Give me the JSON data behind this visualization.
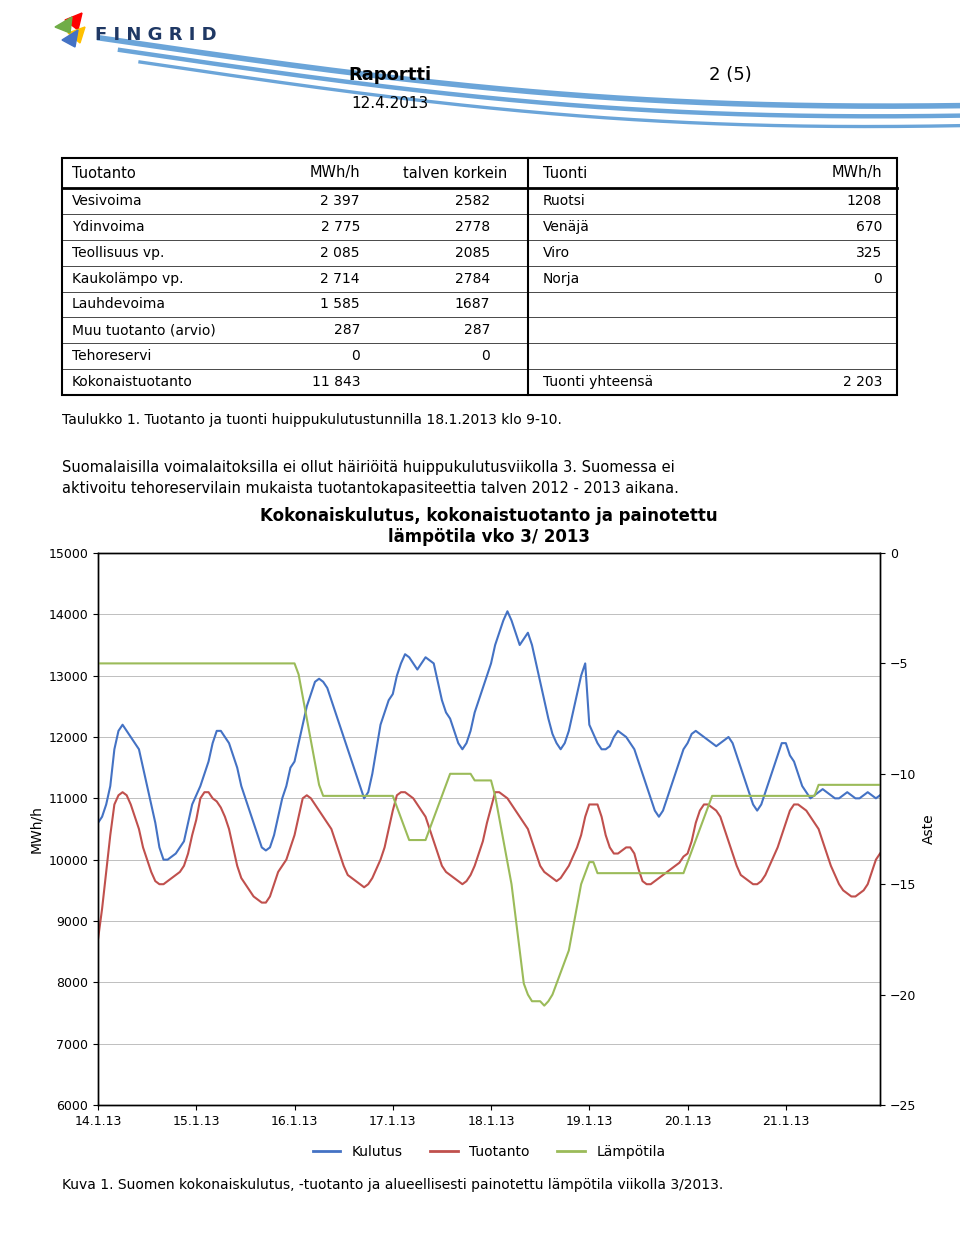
{
  "report_title": "Raportti",
  "report_page": "2 (5)",
  "report_date": "12.4.2013",
  "caption1": "Taulukko 1. Tuotanto ja tuonti huippukulutustunnilla 18.1.2013 klo 9-10.",
  "para_line1": "Suomalaisilla voimalaitoksilla ei ollut häiriöitä huippukulutusviikolla 3. Suomessa ei",
  "para_line2": "aktivoitu tehoreservilain mukaista tuotantokapasiteettia talven 2012 - 2013 aikana.",
  "chart_title": "Kokonaiskulutus, kokonaistuotanto ja painotettu\nlämpötila vko 3/ 2013",
  "ylabel_left": "MWh/h",
  "ylabel_right": "Aste",
  "ylim_left": [
    6000,
    15000
  ],
  "ylim_right": [
    -25,
    0
  ],
  "yticks_left": [
    6000,
    7000,
    8000,
    9000,
    10000,
    11000,
    12000,
    13000,
    14000,
    15000
  ],
  "yticks_right": [
    -25,
    -20,
    -15,
    -10,
    -5,
    0
  ],
  "xtick_labels": [
    "14.1.13",
    "15.1.13",
    "16.1.13",
    "17.1.13",
    "18.1.13",
    "19.1.13",
    "20.1.13",
    "21.1.13"
  ],
  "caption2": "Kuva 1. Suomen kokonaiskulutus, -tuotanto ja alueellisesti painotettu lämpötila viikolla 3/2013.",
  "color_kulutus": "#4472C4",
  "color_tuotanto": "#C0504D",
  "color_lampotila": "#9BBB59",
  "row_labels_left": [
    "Vesivoima",
    "Ydinvoima",
    "Teollisuus vp.",
    "Kaukolämpo vp.",
    "Lauhdevoima",
    "Muu tuotanto (arvio)",
    "Tehoreservi",
    "Kokonaistuotanto"
  ],
  "row_vals_mwh": [
    "2 397",
    "2 775",
    "2 085",
    "2 714",
    "1 585",
    "287",
    "0",
    "11 843"
  ],
  "row_vals_max": [
    "2582",
    "2778",
    "2085",
    "2784",
    "1687",
    "287",
    "0",
    ""
  ],
  "row_labels_right": [
    "Ruotsi",
    "Venäjä",
    "Viro",
    "Norja",
    "",
    "",
    "",
    "Tuonti yhteensä"
  ],
  "row_vals_right": [
    "1208",
    "670",
    "325",
    "0",
    "",
    "",
    "",
    "2 203"
  ],
  "kulutus": [
    10600,
    10700,
    10900,
    11200,
    11800,
    12100,
    12200,
    12100,
    12000,
    11900,
    11800,
    11500,
    11200,
    10900,
    10600,
    10200,
    10000,
    10000,
    10050,
    10100,
    10200,
    10300,
    10600,
    10900,
    11050,
    11200,
    11400,
    11600,
    11900,
    12100,
    12100,
    12000,
    11900,
    11700,
    11500,
    11200,
    11000,
    10800,
    10600,
    10400,
    10200,
    10150,
    10200,
    10400,
    10700,
    11000,
    11200,
    11500,
    11600,
    11900,
    12200,
    12500,
    12700,
    12900,
    12950,
    12900,
    12800,
    12600,
    12400,
    12200,
    12000,
    11800,
    11600,
    11400,
    11200,
    11000,
    11100,
    11400,
    11800,
    12200,
    12400,
    12600,
    12700,
    13000,
    13200,
    13350,
    13300,
    13200,
    13100,
    13200,
    13300,
    13250,
    13200,
    12900,
    12600,
    12400,
    12300,
    12100,
    11900,
    11800,
    11900,
    12100,
    12400,
    12600,
    12800,
    13000,
    13200,
    13500,
    13700,
    13900,
    14050,
    13900,
    13700,
    13500,
    13600,
    13700,
    13500,
    13200,
    12900,
    12600,
    12300,
    12050,
    11900,
    11800,
    11900,
    12100,
    12400,
    12700,
    13000,
    13200,
    12200,
    12050,
    11900,
    11800,
    11800,
    11850,
    12000,
    12100,
    12050,
    12000,
    11900,
    11800,
    11600,
    11400,
    11200,
    11000,
    10800,
    10700,
    10800,
    11000,
    11200,
    11400,
    11600,
    11800,
    11900,
    12050,
    12100,
    12050,
    12000,
    11950,
    11900,
    11850,
    11900,
    11950,
    12000,
    11900,
    11700,
    11500,
    11300,
    11100,
    10900,
    10800,
    10900,
    11100,
    11300,
    11500,
    11700,
    11900,
    11900,
    11700,
    11600,
    11400,
    11200,
    11100,
    11000,
    11050,
    11100,
    11150,
    11100,
    11050,
    11000,
    11000,
    11050,
    11100,
    11050,
    11000,
    11000,
    11050,
    11100,
    11050,
    11000,
    11050
  ],
  "tuotanto": [
    8700,
    9200,
    9800,
    10400,
    10900,
    11050,
    11100,
    11050,
    10900,
    10700,
    10500,
    10200,
    10000,
    9800,
    9650,
    9600,
    9600,
    9650,
    9700,
    9750,
    9800,
    9900,
    10100,
    10400,
    10650,
    11000,
    11100,
    11100,
    11000,
    10950,
    10850,
    10700,
    10500,
    10200,
    9900,
    9700,
    9600,
    9500,
    9400,
    9350,
    9300,
    9300,
    9400,
    9600,
    9800,
    9900,
    10000,
    10200,
    10400,
    10700,
    11000,
    11050,
    11000,
    10900,
    10800,
    10700,
    10600,
    10500,
    10300,
    10100,
    9900,
    9750,
    9700,
    9650,
    9600,
    9550,
    9600,
    9700,
    9850,
    10000,
    10200,
    10500,
    10800,
    11050,
    11100,
    11100,
    11050,
    11000,
    10900,
    10800,
    10700,
    10500,
    10300,
    10100,
    9900,
    9800,
    9750,
    9700,
    9650,
    9600,
    9650,
    9750,
    9900,
    10100,
    10300,
    10600,
    10850,
    11100,
    11100,
    11050,
    11000,
    10900,
    10800,
    10700,
    10600,
    10500,
    10300,
    10100,
    9900,
    9800,
    9750,
    9700,
    9650,
    9700,
    9800,
    9900,
    10050,
    10200,
    10400,
    10700,
    10900,
    10900,
    10900,
    10700,
    10400,
    10200,
    10100,
    10100,
    10150,
    10200,
    10200,
    10100,
    9850,
    9650,
    9600,
    9600,
    9650,
    9700,
    9750,
    9800,
    9850,
    9900,
    9950,
    10050,
    10100,
    10300,
    10600,
    10800,
    10900,
    10900,
    10850,
    10800,
    10700,
    10500,
    10300,
    10100,
    9900,
    9750,
    9700,
    9650,
    9600,
    9600,
    9650,
    9750,
    9900,
    10050,
    10200,
    10400,
    10600,
    10800,
    10900,
    10900,
    10850,
    10800,
    10700,
    10600,
    10500,
    10300,
    10100,
    9900,
    9750,
    9600,
    9500,
    9450,
    9400,
    9400,
    9450,
    9500,
    9600,
    9800,
    10000,
    10100
  ],
  "lampotila": [
    -5.0,
    -5.0,
    -5.0,
    -5.0,
    -5.0,
    -5.0,
    -5.0,
    -5.0,
    -5.0,
    -5.0,
    -5.0,
    -5.0,
    -5.0,
    -5.0,
    -5.0,
    -5.0,
    -5.0,
    -5.0,
    -5.0,
    -5.0,
    -5.0,
    -5.0,
    -5.0,
    -5.0,
    -5.0,
    -5.0,
    -5.0,
    -5.0,
    -5.0,
    -5.0,
    -5.0,
    -5.0,
    -5.0,
    -5.0,
    -5.0,
    -5.0,
    -5.0,
    -5.0,
    -5.0,
    -5.0,
    -5.0,
    -5.0,
    -5.0,
    -5.0,
    -5.0,
    -5.0,
    -5.0,
    -5.0,
    -5.0,
    -5.5,
    -6.5,
    -7.5,
    -8.5,
    -9.5,
    -10.5,
    -11.0,
    -11.0,
    -11.0,
    -11.0,
    -11.0,
    -11.0,
    -11.0,
    -11.0,
    -11.0,
    -11.0,
    -11.0,
    -11.0,
    -11.0,
    -11.0,
    -11.0,
    -11.0,
    -11.0,
    -11.0,
    -11.5,
    -12.0,
    -12.5,
    -13.0,
    -13.0,
    -13.0,
    -13.0,
    -13.0,
    -12.5,
    -12.0,
    -11.5,
    -11.0,
    -10.5,
    -10.0,
    -10.0,
    -10.0,
    -10.0,
    -10.0,
    -10.0,
    -10.3,
    -10.3,
    -10.3,
    -10.3,
    -10.3,
    -11.0,
    -12.0,
    -13.0,
    -14.0,
    -15.0,
    -16.5,
    -18.0,
    -19.5,
    -20.0,
    -20.3,
    -20.3,
    -20.3,
    -20.5,
    -20.3,
    -20.0,
    -19.5,
    -19.0,
    -18.5,
    -18.0,
    -17.0,
    -16.0,
    -15.0,
    -14.5,
    -14.0,
    -14.0,
    -14.5,
    -14.5,
    -14.5,
    -14.5,
    -14.5,
    -14.5,
    -14.5,
    -14.5,
    -14.5,
    -14.5,
    -14.5,
    -14.5,
    -14.5,
    -14.5,
    -14.5,
    -14.5,
    -14.5,
    -14.5,
    -14.5,
    -14.5,
    -14.5,
    -14.5,
    -14.0,
    -13.5,
    -13.0,
    -12.5,
    -12.0,
    -11.5,
    -11.0,
    -11.0,
    -11.0,
    -11.0,
    -11.0,
    -11.0,
    -11.0,
    -11.0,
    -11.0,
    -11.0,
    -11.0,
    -11.0,
    -11.0,
    -11.0,
    -11.0,
    -11.0,
    -11.0,
    -11.0,
    -11.0,
    -11.0,
    -11.0,
    -11.0,
    -11.0,
    -11.0,
    -11.0,
    -11.0,
    -10.5,
    -10.5,
    -10.5,
    -10.5,
    -10.5,
    -10.5,
    -10.5,
    -10.5,
    -10.5,
    -10.5,
    -10.5,
    -10.5,
    -10.5,
    -10.5,
    -10.5,
    -10.5
  ]
}
